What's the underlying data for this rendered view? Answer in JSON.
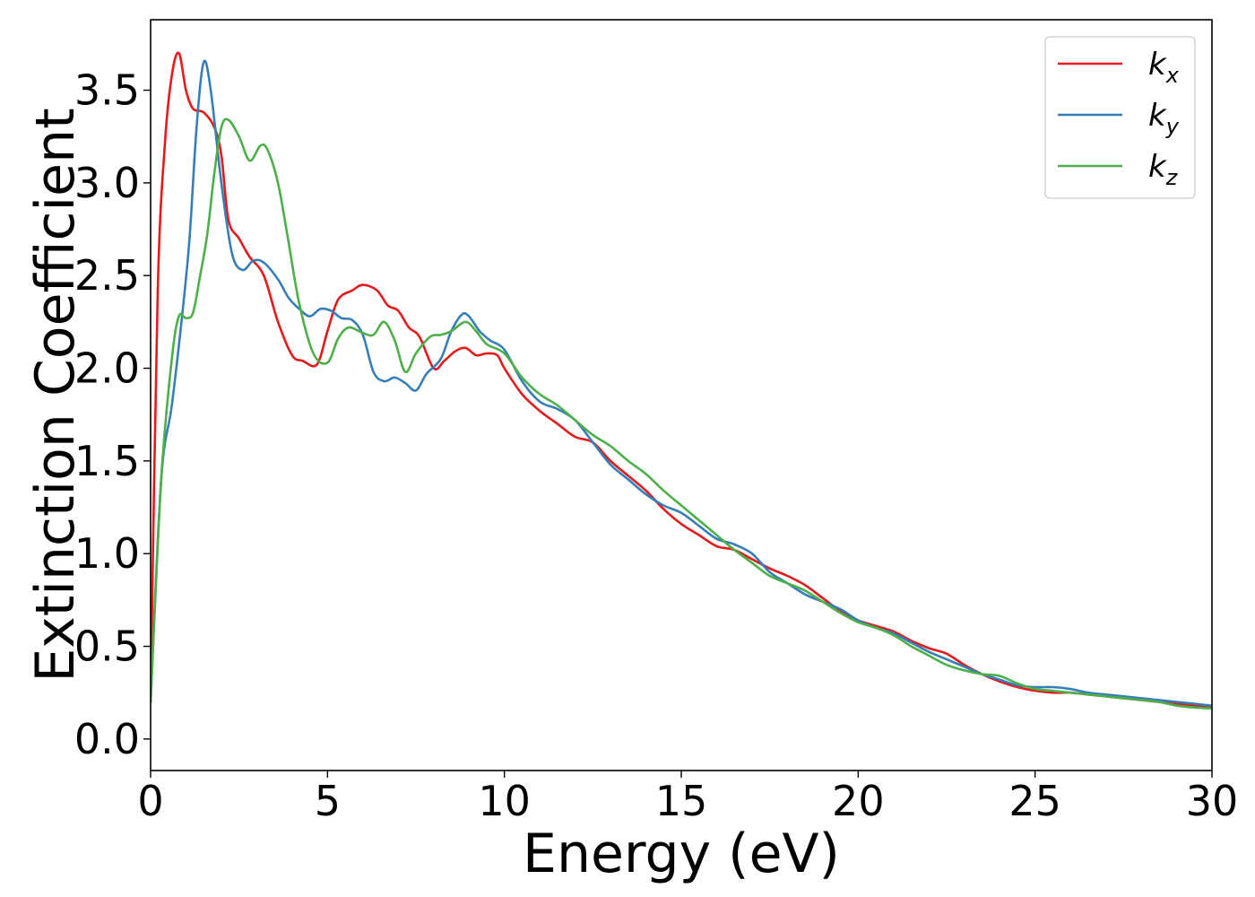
{
  "chart_data": {
    "type": "line",
    "xlabel": "Energy (eV)",
    "ylabel": "Extinction Coefficient",
    "xlim": [
      0,
      30
    ],
    "ylim": [
      -0.17,
      3.88
    ],
    "xticks": [
      0,
      5,
      10,
      15,
      20,
      25,
      30
    ],
    "xtick_labels": [
      "0",
      "5",
      "10",
      "15",
      "20",
      "25",
      "30"
    ],
    "yticks": [
      0.0,
      0.5,
      1.0,
      1.5,
      2.0,
      2.5,
      3.0,
      3.5
    ],
    "ytick_labels": [
      "0.0",
      "0.5",
      "1.0",
      "1.5",
      "2.0",
      "2.5",
      "3.0",
      "3.5"
    ],
    "grid": false,
    "legend_position": "top-right",
    "series": [
      {
        "name": "k",
        "subscript": "x",
        "color": "#e41a1c",
        "x": [
          0,
          0.2,
          0.4,
          0.6,
          0.8,
          1.0,
          1.2,
          1.5,
          1.8,
          2.0,
          2.2,
          2.5,
          2.8,
          3.2,
          3.6,
          4.0,
          4.3,
          4.7,
          5.0,
          5.3,
          5.7,
          6.0,
          6.4,
          6.7,
          7.0,
          7.3,
          7.6,
          8.0,
          8.3,
          8.6,
          8.9,
          9.2,
          9.5,
          9.8,
          10.0,
          10.5,
          11.0,
          11.5,
          12.0,
          12.5,
          13.0,
          13.5,
          14.0,
          14.5,
          15.0,
          15.5,
          16.0,
          16.5,
          17.0,
          17.5,
          18.0,
          18.5,
          19.0,
          19.5,
          20.0,
          20.5,
          21.0,
          21.5,
          22.0,
          22.5,
          23.0,
          23.5,
          24.0,
          24.5,
          25.0,
          25.5,
          26.0,
          26.5,
          27.0,
          27.5,
          28.0,
          28.5,
          29.0,
          29.5,
          30.0
        ],
        "y": [
          0.2,
          2.4,
          3.2,
          3.58,
          3.7,
          3.5,
          3.4,
          3.38,
          3.3,
          3.15,
          2.8,
          2.7,
          2.6,
          2.5,
          2.25,
          2.07,
          2.04,
          2.02,
          2.2,
          2.37,
          2.42,
          2.45,
          2.42,
          2.34,
          2.31,
          2.22,
          2.17,
          2.0,
          2.04,
          2.09,
          2.11,
          2.07,
          2.08,
          2.07,
          2.0,
          1.86,
          1.77,
          1.7,
          1.63,
          1.6,
          1.5,
          1.42,
          1.34,
          1.24,
          1.16,
          1.1,
          1.04,
          1.02,
          0.97,
          0.92,
          0.88,
          0.83,
          0.76,
          0.69,
          0.64,
          0.61,
          0.58,
          0.53,
          0.49,
          0.46,
          0.4,
          0.35,
          0.31,
          0.28,
          0.26,
          0.25,
          0.25,
          0.24,
          0.23,
          0.22,
          0.21,
          0.2,
          0.19,
          0.18,
          0.175
        ]
      },
      {
        "name": "k",
        "subscript": "y",
        "color": "#377eb8",
        "x": [
          0,
          0.3,
          0.6,
          0.9,
          1.1,
          1.3,
          1.5,
          1.7,
          2.0,
          2.3,
          2.6,
          2.9,
          3.2,
          3.6,
          3.9,
          4.2,
          4.5,
          4.8,
          5.1,
          5.4,
          5.7,
          6.0,
          6.3,
          6.6,
          6.9,
          7.2,
          7.5,
          7.8,
          8.2,
          8.5,
          8.8,
          9.0,
          9.3,
          9.6,
          10.0,
          10.5,
          11.0,
          11.5,
          12.0,
          12.5,
          13.0,
          13.5,
          14.0,
          14.5,
          15.0,
          15.5,
          16.0,
          16.5,
          17.0,
          17.5,
          18.0,
          18.5,
          19.0,
          19.5,
          20.0,
          20.5,
          21.0,
          21.5,
          22.0,
          22.5,
          23.0,
          23.5,
          24.0,
          24.5,
          25.0,
          25.5,
          26.0,
          26.5,
          27.0,
          27.5,
          28.0,
          28.5,
          29.0,
          29.5,
          30.0
        ],
        "y": [
          0.2,
          1.4,
          1.8,
          2.3,
          2.7,
          3.3,
          3.65,
          3.5,
          3.0,
          2.62,
          2.53,
          2.58,
          2.57,
          2.48,
          2.38,
          2.32,
          2.28,
          2.32,
          2.31,
          2.27,
          2.26,
          2.18,
          1.98,
          1.93,
          1.95,
          1.92,
          1.88,
          1.97,
          2.05,
          2.2,
          2.29,
          2.28,
          2.2,
          2.15,
          2.1,
          1.93,
          1.82,
          1.78,
          1.72,
          1.6,
          1.48,
          1.4,
          1.32,
          1.26,
          1.22,
          1.15,
          1.08,
          1.05,
          1.0,
          0.9,
          0.84,
          0.78,
          0.74,
          0.7,
          0.64,
          0.6,
          0.57,
          0.52,
          0.47,
          0.43,
          0.39,
          0.35,
          0.32,
          0.29,
          0.28,
          0.28,
          0.27,
          0.25,
          0.24,
          0.23,
          0.22,
          0.21,
          0.2,
          0.19,
          0.18
        ]
      },
      {
        "name": "k",
        "subscript": "z",
        "color": "#4daf4a",
        "x": [
          0,
          0.3,
          0.6,
          0.8,
          1.0,
          1.2,
          1.4,
          1.6,
          1.8,
          2.0,
          2.2,
          2.5,
          2.8,
          3.1,
          3.3,
          3.6,
          3.9,
          4.2,
          4.6,
          5.0,
          5.3,
          5.6,
          6.0,
          6.3,
          6.6,
          6.9,
          7.2,
          7.5,
          7.9,
          8.2,
          8.5,
          8.9,
          9.2,
          9.5,
          10.0,
          10.5,
          11.0,
          11.5,
          12.0,
          12.5,
          13.0,
          13.5,
          14.0,
          14.5,
          15.0,
          15.5,
          16.0,
          16.5,
          17.0,
          17.5,
          18.0,
          18.5,
          19.0,
          19.5,
          20.0,
          20.5,
          21.0,
          21.5,
          22.0,
          22.5,
          23.0,
          23.5,
          24.0,
          24.5,
          25.0,
          25.5,
          26.0,
          26.5,
          27.0,
          27.5,
          28.0,
          28.5,
          29.0,
          29.5,
          30.0
        ],
        "y": [
          0.2,
          1.4,
          2.05,
          2.28,
          2.27,
          2.3,
          2.5,
          2.72,
          3.05,
          3.3,
          3.34,
          3.25,
          3.12,
          3.2,
          3.18,
          3.0,
          2.68,
          2.35,
          2.08,
          2.03,
          2.16,
          2.22,
          2.19,
          2.18,
          2.25,
          2.15,
          1.98,
          2.08,
          2.17,
          2.18,
          2.2,
          2.25,
          2.2,
          2.13,
          2.08,
          1.95,
          1.86,
          1.8,
          1.72,
          1.64,
          1.58,
          1.5,
          1.43,
          1.34,
          1.26,
          1.18,
          1.1,
          1.02,
          0.95,
          0.88,
          0.84,
          0.8,
          0.74,
          0.68,
          0.63,
          0.6,
          0.56,
          0.5,
          0.45,
          0.4,
          0.37,
          0.35,
          0.34,
          0.3,
          0.27,
          0.26,
          0.25,
          0.24,
          0.23,
          0.22,
          0.21,
          0.2,
          0.18,
          0.17,
          0.165
        ]
      }
    ]
  }
}
